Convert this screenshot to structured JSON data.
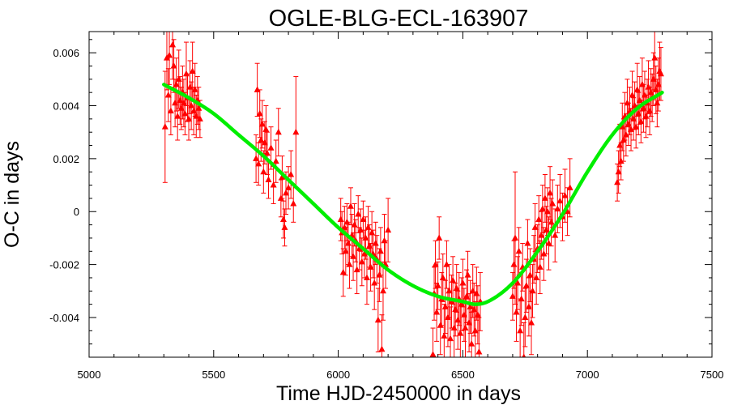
{
  "chart_data": {
    "type": "scatter",
    "title": "OGLE-BLG-ECL-163907",
    "xlabel": "Time HJD-2450000 in days",
    "ylabel": "O-C in days",
    "xlim": [
      5000,
      7500
    ],
    "ylim": [
      -0.0055,
      0.0068
    ],
    "xticks": [
      5000,
      5500,
      6000,
      6500,
      7000,
      7500
    ],
    "xtick_labels": [
      "5000",
      "5500",
      "6000",
      "6500",
      "7000",
      "7500"
    ],
    "yticks": [
      -0.004,
      -0.002,
      0,
      0.002,
      0.004,
      0.006
    ],
    "ytick_labels": [
      "-0.004",
      "-0.002",
      "0",
      "0.002",
      "0.004",
      "0.006"
    ],
    "grid": false,
    "colors": {
      "points": "#ff0000",
      "fit": "#00ee00"
    },
    "series": [
      {
        "kind": "scatter-with-error-bars",
        "marker": "triangle",
        "points": [
          [
            5305,
            0.0032,
            0.0021
          ],
          [
            5312,
            0.0058,
            0.0012
          ],
          [
            5318,
            0.0044,
            0.001
          ],
          [
            5322,
            0.0059,
            0.0011
          ],
          [
            5328,
            0.0038,
            0.0009
          ],
          [
            5335,
            0.0063,
            0.0013
          ],
          [
            5340,
            0.0055,
            0.001
          ],
          [
            5345,
            0.0041,
            0.0009
          ],
          [
            5350,
            0.0048,
            0.001
          ],
          [
            5355,
            0.0036,
            0.0009
          ],
          [
            5360,
            0.005,
            0.0011
          ],
          [
            5365,
            0.0042,
            0.0009
          ],
          [
            5370,
            0.0039,
            0.0008
          ],
          [
            5375,
            0.0045,
            0.001
          ],
          [
            5380,
            0.0041,
            0.0009
          ],
          [
            5385,
            0.0037,
            0.0008
          ],
          [
            5390,
            0.0052,
            0.0012
          ],
          [
            5395,
            0.0043,
            0.0009
          ],
          [
            5400,
            0.0035,
            0.0008
          ],
          [
            5405,
            0.0047,
            0.001
          ],
          [
            5410,
            0.004,
            0.0009
          ],
          [
            5415,
            0.0053,
            0.0011
          ],
          [
            5420,
            0.0038,
            0.0009
          ],
          [
            5425,
            0.0046,
            0.001
          ],
          [
            5430,
            0.0036,
            0.0008
          ],
          [
            5435,
            0.0042,
            0.0009
          ],
          [
            5440,
            0.0039,
            0.0008
          ],
          [
            5445,
            0.0035,
            0.0007
          ],
          [
            5670,
            0.002,
            0.0009
          ],
          [
            5675,
            0.0046,
            0.001
          ],
          [
            5680,
            0.0018,
            0.0008
          ],
          [
            5685,
            0.0037,
            0.0009
          ],
          [
            5690,
            0.0027,
            0.0008
          ],
          [
            5695,
            0.0033,
            0.0009
          ],
          [
            5700,
            0.0015,
            0.0008
          ],
          [
            5705,
            0.0026,
            0.0008
          ],
          [
            5710,
            0.0031,
            0.0009
          ],
          [
            5715,
            0.0022,
            0.0008
          ],
          [
            5720,
            0.0012,
            0.0007
          ],
          [
            5730,
            0.0024,
            0.0008
          ],
          [
            5740,
            0.001,
            0.0007
          ],
          [
            5750,
            0.0019,
            0.0008
          ],
          [
            5760,
            0.003,
            0.0009
          ],
          [
            5770,
            0.0005,
            0.0007
          ],
          [
            5775,
            0.0013,
            0.0008
          ],
          [
            5780,
            -0.0003,
            0.0007
          ],
          [
            5785,
            -0.0006,
            0.0007
          ],
          [
            5790,
            0.0007,
            0.0008
          ],
          [
            5800,
            0.0009,
            0.0008
          ],
          [
            5810,
            0.0014,
            0.0009
          ],
          [
            5820,
            0.0003,
            0.0007
          ],
          [
            5830,
            0.003,
            0.0021
          ],
          [
            6010,
            -0.0003,
            0.0008
          ],
          [
            6015,
            -0.0008,
            0.0008
          ],
          [
            6020,
            -0.0023,
            0.0009
          ],
          [
            6025,
            -0.0006,
            0.0008
          ],
          [
            6030,
            -0.0015,
            0.0009
          ],
          [
            6035,
            -0.0004,
            0.0007
          ],
          [
            6040,
            -0.0012,
            0.0008
          ],
          [
            6045,
            -0.002,
            0.0009
          ],
          [
            6050,
            0.0002,
            0.0007
          ],
          [
            6055,
            -0.0009,
            0.0008
          ],
          [
            6060,
            -0.0017,
            0.0009
          ],
          [
            6065,
            -0.0005,
            0.0008
          ],
          [
            6070,
            -0.0011,
            0.0008
          ],
          [
            6075,
            -0.0022,
            0.0009
          ],
          [
            6080,
            -0.0001,
            0.0007
          ],
          [
            6085,
            -0.0014,
            0.0008
          ],
          [
            6090,
            -0.0007,
            0.0008
          ],
          [
            6095,
            -0.0019,
            0.0009
          ],
          [
            6100,
            -0.0003,
            0.0007
          ],
          [
            6105,
            -0.0016,
            0.0009
          ],
          [
            6110,
            -0.001,
            0.0008
          ],
          [
            6115,
            -0.0025,
            0.001
          ],
          [
            6120,
            -0.0006,
            0.0008
          ],
          [
            6125,
            -0.0013,
            0.0008
          ],
          [
            6130,
            -0.0021,
            0.0009
          ],
          [
            6135,
            -0.0008,
            0.0008
          ],
          [
            6140,
            -0.0016,
            0.0009
          ],
          [
            6145,
            -0.0027,
            0.001
          ],
          [
            6150,
            -0.0012,
            0.0008
          ],
          [
            6155,
            -0.0018,
            0.0009
          ],
          [
            6160,
            -0.0041,
            0.0012
          ],
          [
            6165,
            -0.0024,
            0.001
          ],
          [
            6170,
            -0.0015,
            0.0009
          ],
          [
            6175,
            -0.0052,
            0.0013
          ],
          [
            6180,
            -0.003,
            0.0011
          ],
          [
            6185,
            -0.0011,
            0.001
          ],
          [
            6190,
            -0.002,
            0.0009
          ],
          [
            6200,
            -0.0007,
            0.0012
          ],
          [
            6380,
            -0.0054,
            0.001
          ],
          [
            6385,
            -0.0031,
            0.001
          ],
          [
            6390,
            -0.002,
            0.0009
          ],
          [
            6395,
            -0.0038,
            0.0011
          ],
          [
            6400,
            -0.0028,
            0.0009
          ],
          [
            6405,
            -0.001,
            0.0008
          ],
          [
            6410,
            -0.0043,
            0.0011
          ],
          [
            6415,
            -0.0033,
            0.001
          ],
          [
            6420,
            -0.0025,
            0.0009
          ],
          [
            6425,
            -0.0047,
            0.0012
          ],
          [
            6430,
            -0.0036,
            0.001
          ],
          [
            6435,
            -0.002,
            0.0009
          ],
          [
            6440,
            -0.004,
            0.0011
          ],
          [
            6445,
            -0.003,
            0.001
          ],
          [
            6450,
            -0.0048,
            0.0012
          ],
          [
            6455,
            -0.0034,
            0.001
          ],
          [
            6460,
            -0.0026,
            0.0009
          ],
          [
            6465,
            -0.0044,
            0.0011
          ],
          [
            6470,
            -0.0037,
            0.001
          ],
          [
            6475,
            -0.0029,
            0.0009
          ],
          [
            6480,
            -0.0041,
            0.0011
          ],
          [
            6485,
            -0.0033,
            0.001
          ],
          [
            6490,
            -0.0046,
            0.0012
          ],
          [
            6495,
            -0.0035,
            0.001
          ],
          [
            6500,
            -0.0027,
            0.0009
          ],
          [
            6505,
            -0.0039,
            0.001
          ],
          [
            6510,
            -0.0044,
            0.0011
          ],
          [
            6515,
            -0.0032,
            0.001
          ],
          [
            6520,
            -0.0024,
            0.0009
          ],
          [
            6525,
            -0.0042,
            0.0011
          ],
          [
            6530,
            -0.0036,
            0.001
          ],
          [
            6535,
            -0.005,
            0.0012
          ],
          [
            6540,
            -0.003,
            0.001
          ],
          [
            6545,
            -0.0037,
            0.001
          ],
          [
            6550,
            -0.0045,
            0.0011
          ],
          [
            6555,
            -0.0031,
            0.001
          ],
          [
            6560,
            -0.0039,
            0.0011
          ],
          [
            6565,
            -0.0053,
            0.0013
          ],
          [
            6570,
            -0.0034,
            0.0011
          ],
          [
            6700,
            -0.0032,
            0.0009
          ],
          [
            6705,
            -0.002,
            0.0009
          ],
          [
            6710,
            -0.001,
            0.0025
          ],
          [
            6715,
            -0.0038,
            0.0011
          ],
          [
            6720,
            -0.0027,
            0.001
          ],
          [
            6725,
            -0.0015,
            0.0009
          ],
          [
            6730,
            -0.0045,
            0.0012
          ],
          [
            6735,
            -0.0033,
            0.001
          ],
          [
            6740,
            -0.0021,
            0.0009
          ],
          [
            6745,
            -0.0055,
            0.0013
          ],
          [
            6750,
            -0.004,
            0.0011
          ],
          [
            6755,
            -0.0028,
            0.001
          ],
          [
            6760,
            -0.0012,
            0.0009
          ],
          [
            6765,
            -0.0036,
            0.0011
          ],
          [
            6770,
            -0.0024,
            0.001
          ],
          [
            6775,
            -0.0042,
            0.0012
          ],
          [
            6780,
            -0.003,
            0.001
          ],
          [
            6785,
            -0.0018,
            0.0009
          ],
          [
            6790,
            -0.0006,
            0.0009
          ],
          [
            6795,
            -0.0025,
            0.001
          ],
          [
            6800,
            -0.0014,
            0.0009
          ],
          [
            6805,
            -0.0003,
            0.0009
          ],
          [
            6810,
            -0.0021,
            0.001
          ],
          [
            6815,
            -0.0009,
            0.0009
          ],
          [
            6820,
            0.0001,
            0.0009
          ],
          [
            6825,
            -0.0016,
            0.001
          ],
          [
            6830,
            0.0005,
            0.0009
          ],
          [
            6835,
            -0.0007,
            0.0009
          ],
          [
            6840,
            0.0,
            0.0009
          ],
          [
            6845,
            -0.0012,
            0.001
          ],
          [
            6850,
            0.0007,
            0.001
          ],
          [
            6855,
            -0.0004,
            0.0009
          ],
          [
            6860,
            0.0003,
            0.0009
          ],
          [
            6870,
            -0.0009,
            0.001
          ],
          [
            6880,
            0.0001,
            0.0009
          ],
          [
            6890,
            0.0004,
            0.001
          ],
          [
            6900,
            -0.0002,
            0.0009
          ],
          [
            6910,
            0.0006,
            0.001
          ],
          [
            6920,
            0.0,
            0.0009
          ],
          [
            6930,
            0.0009,
            0.0011
          ],
          [
            7120,
            0.0011,
            0.0007
          ],
          [
            7125,
            0.0015,
            0.0008
          ],
          [
            7130,
            0.0025,
            0.0008
          ],
          [
            7135,
            0.0019,
            0.0007
          ],
          [
            7140,
            0.0032,
            0.0009
          ],
          [
            7145,
            0.0027,
            0.0008
          ],
          [
            7150,
            0.0036,
            0.0009
          ],
          [
            7155,
            0.0029,
            0.0008
          ],
          [
            7160,
            0.0041,
            0.0009
          ],
          [
            7165,
            0.0033,
            0.0008
          ],
          [
            7170,
            0.0038,
            0.0009
          ],
          [
            7175,
            0.0031,
            0.0008
          ],
          [
            7180,
            0.0044,
            0.0009
          ],
          [
            7185,
            0.0035,
            0.0008
          ],
          [
            7190,
            0.004,
            0.0009
          ],
          [
            7195,
            0.0032,
            0.0008
          ],
          [
            7200,
            0.0046,
            0.001
          ],
          [
            7205,
            0.0037,
            0.0008
          ],
          [
            7210,
            0.0042,
            0.0009
          ],
          [
            7215,
            0.0034,
            0.0008
          ],
          [
            7220,
            0.0048,
            0.001
          ],
          [
            7225,
            0.0039,
            0.0009
          ],
          [
            7230,
            0.0044,
            0.0009
          ],
          [
            7235,
            0.0036,
            0.0008
          ],
          [
            7240,
            0.0041,
            0.0009
          ],
          [
            7245,
            0.0047,
            0.001
          ],
          [
            7250,
            0.0038,
            0.0009
          ],
          [
            7255,
            0.0045,
            0.0009
          ],
          [
            7260,
            0.0043,
            0.0009
          ],
          [
            7265,
            0.005,
            0.001
          ],
          [
            7270,
            0.0058,
            0.0012
          ],
          [
            7275,
            0.0046,
            0.0009
          ],
          [
            7280,
            0.0041,
            0.0009
          ],
          [
            7285,
            0.0048,
            0.001
          ],
          [
            7290,
            0.0053,
            0.0011
          ],
          [
            7295,
            0.0052,
            0.001
          ]
        ]
      },
      {
        "kind": "fit-line",
        "points": [
          [
            5300,
            0.0048
          ],
          [
            5400,
            0.0043
          ],
          [
            5500,
            0.0037
          ],
          [
            5600,
            0.0029
          ],
          [
            5700,
            0.0021
          ],
          [
            5800,
            0.0012
          ],
          [
            5900,
            0.0003
          ],
          [
            6000,
            -0.0006
          ],
          [
            6100,
            -0.0014
          ],
          [
            6200,
            -0.0022
          ],
          [
            6300,
            -0.0028
          ],
          [
            6400,
            -0.0032
          ],
          [
            6500,
            -0.0034
          ],
          [
            6550,
            -0.0035
          ],
          [
            6600,
            -0.0034
          ],
          [
            6700,
            -0.0027
          ],
          [
            6800,
            -0.0015
          ],
          [
            6900,
            -0.0001
          ],
          [
            7000,
            0.0015
          ],
          [
            7100,
            0.0029
          ],
          [
            7200,
            0.0039
          ],
          [
            7300,
            0.0045
          ]
        ]
      }
    ]
  }
}
